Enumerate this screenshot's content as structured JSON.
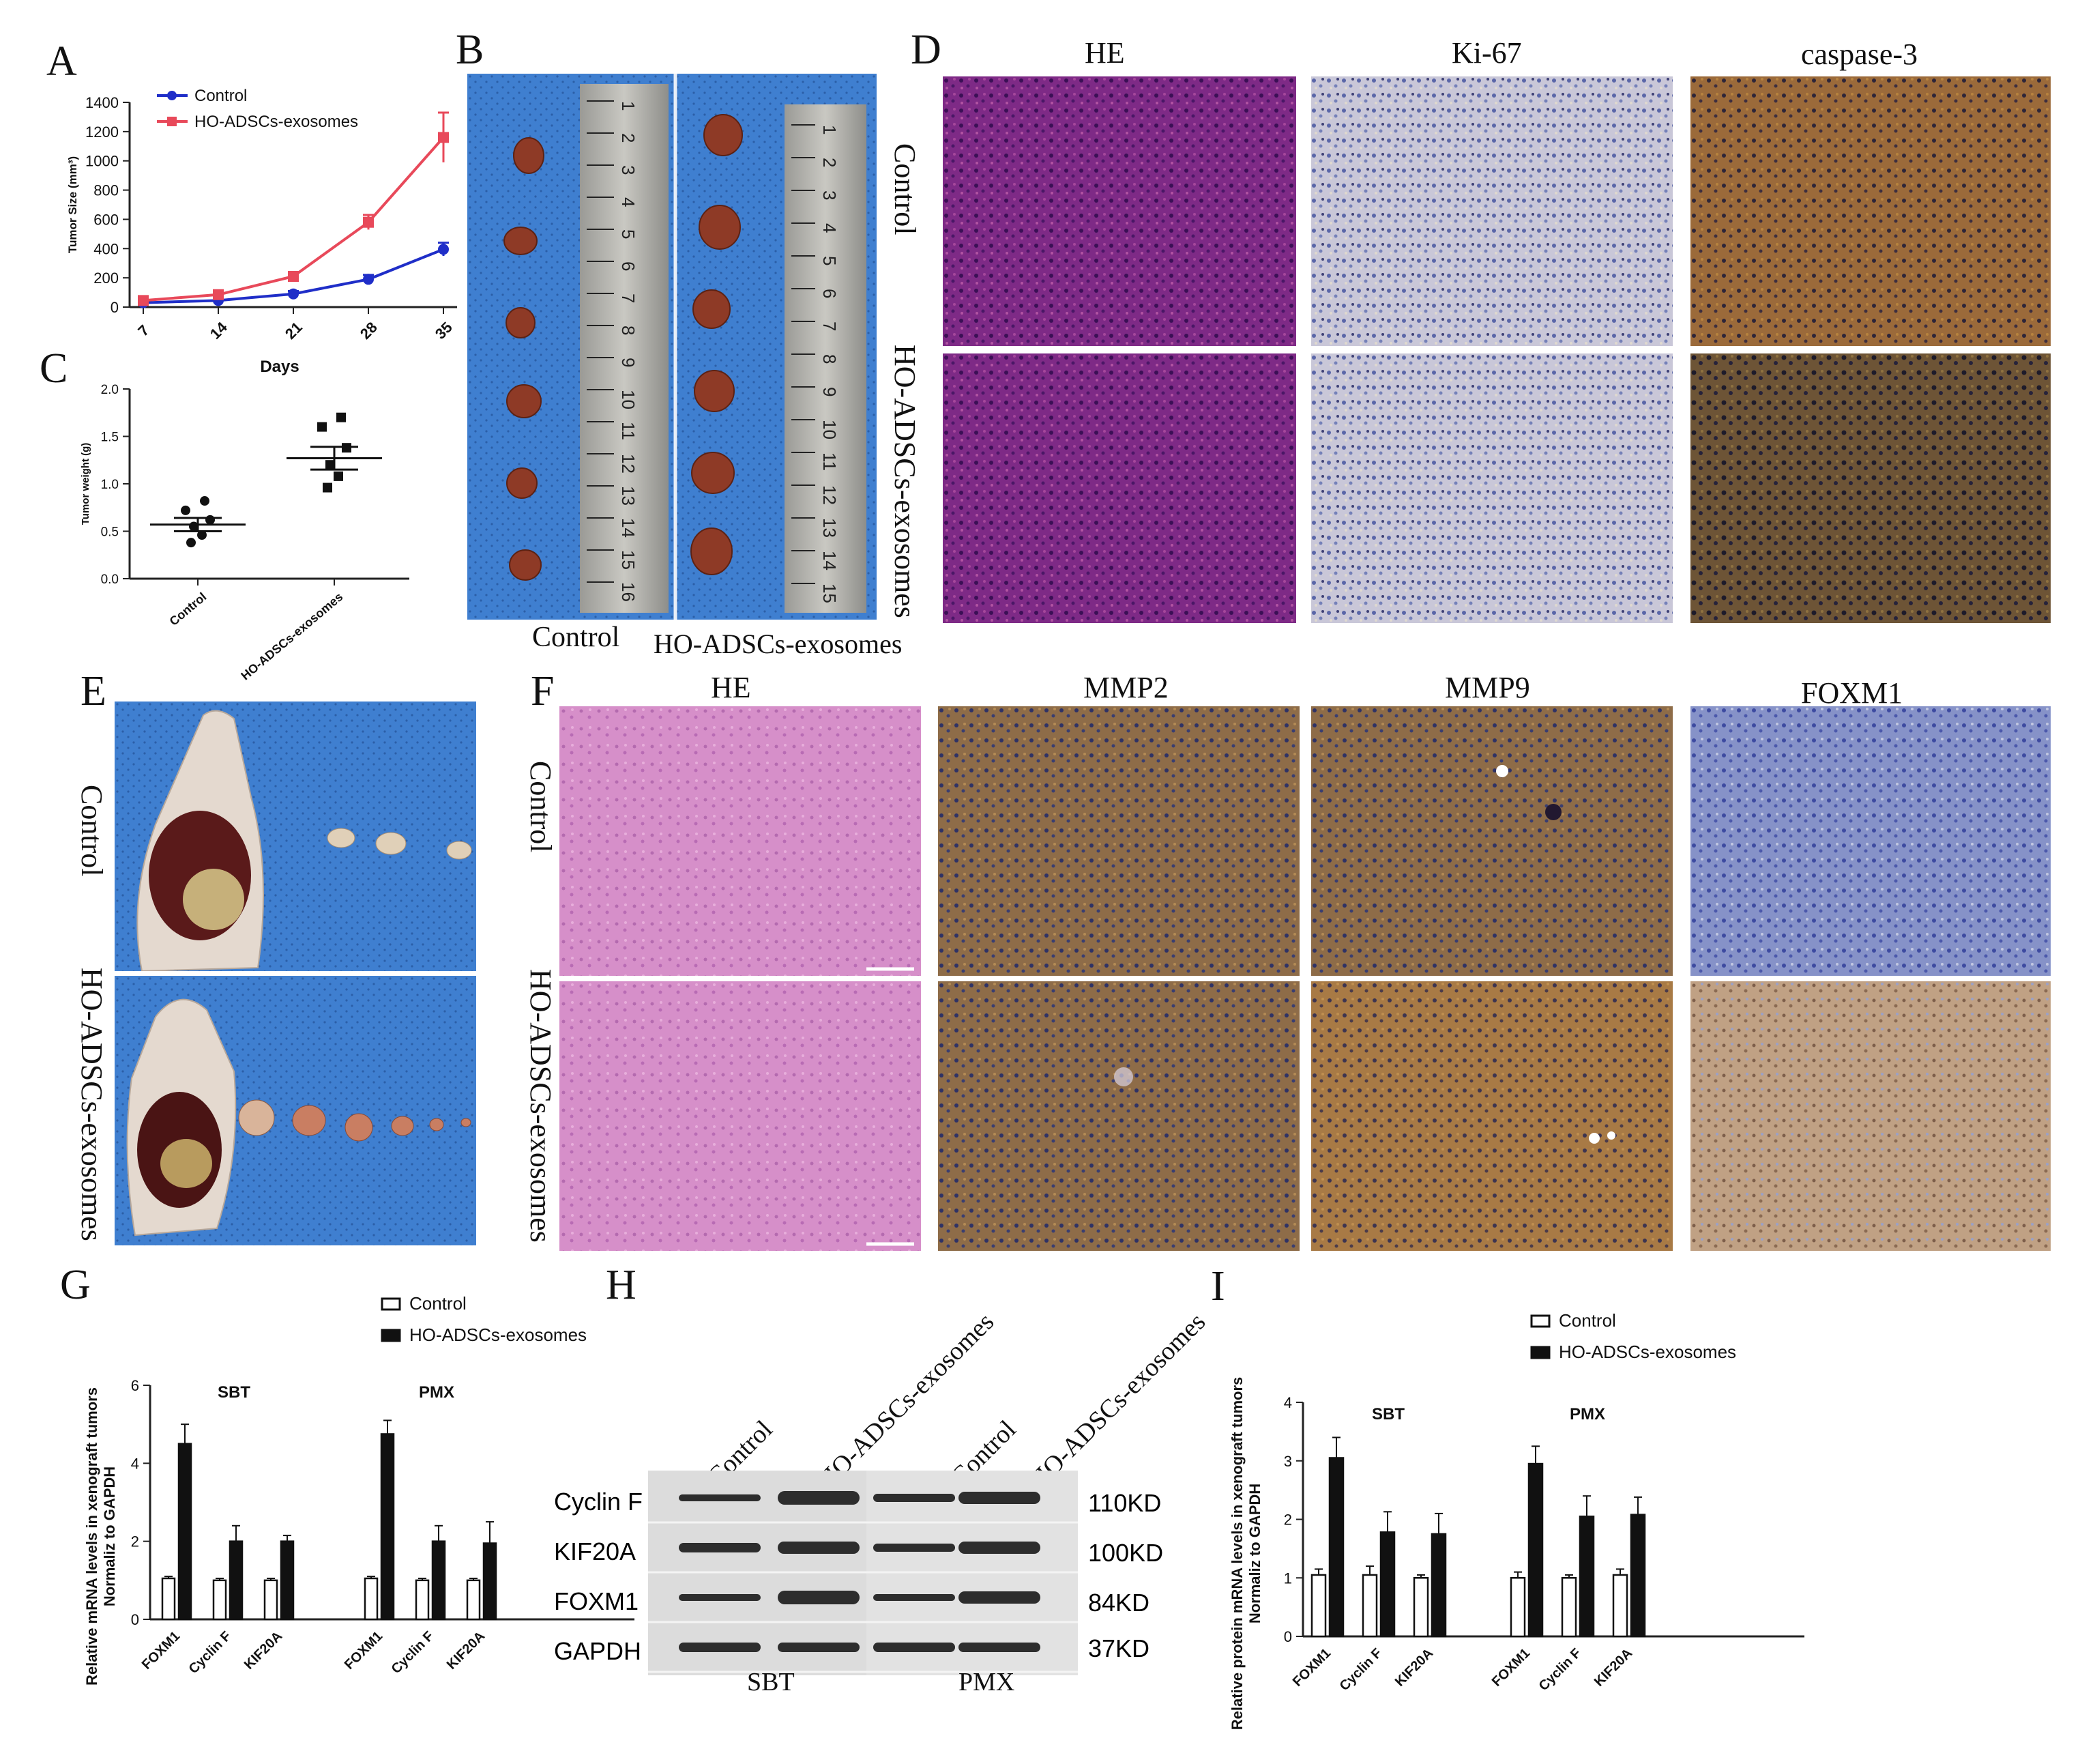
{
  "panels": {
    "A": "A",
    "B": "B",
    "C": "C",
    "D": "D",
    "E": "E",
    "F": "F",
    "G": "G",
    "H": "H",
    "I": "I"
  },
  "colors": {
    "control_line": "#1f2ec8",
    "exo_line": "#e8495a",
    "bar_control": "#ffffff",
    "bar_exo": "#111111",
    "blot_bg": "#dcdcdc",
    "blot_band": "#1a1a1a"
  },
  "panel_a": {
    "chart_data": {
      "type": "line",
      "xlabel": "Days",
      "ylabel": "Tumor Size (mm³)",
      "x": [
        7,
        14,
        21,
        28,
        35
      ],
      "ylim": [
        0,
        1400
      ],
      "yticks": [
        0,
        200,
        400,
        600,
        800,
        1000,
        1200,
        1400
      ],
      "series": [
        {
          "name": "Control",
          "values": [
            30,
            45,
            90,
            190,
            395
          ],
          "errors": [
            15,
            15,
            20,
            30,
            45
          ],
          "color": "#1f2ec8"
        },
        {
          "name": "HO-ADSCs-exosomes",
          "values": [
            45,
            85,
            210,
            580,
            1160
          ],
          "errors": [
            15,
            20,
            25,
            50,
            170
          ],
          "color": "#e8495a"
        }
      ]
    }
  },
  "panel_c": {
    "chart_data": {
      "type": "scatter",
      "ylabel": "Tumor weight (g)",
      "categories": [
        "Control",
        "HO-ADSCs-exosomes"
      ],
      "ylim": [
        0,
        2.0
      ],
      "yticks": [
        "0.0",
        "0.5",
        "1.0",
        "1.5",
        "2.0"
      ],
      "points": [
        [
          0.82,
          0.72,
          0.62,
          0.55,
          0.46,
          0.38
        ],
        [
          1.7,
          1.6,
          1.38,
          1.2,
          1.08,
          0.96
        ]
      ],
      "means": [
        0.57,
        1.27
      ],
      "sem": [
        0.07,
        0.12
      ]
    }
  },
  "panel_b": {
    "control": "Control",
    "exo": "HO-ADSCs-exosomes"
  },
  "panel_d": {
    "cols": [
      "HE",
      "Ki-67",
      "caspase-3"
    ],
    "rows": [
      "Control",
      "HO-ADSCs-exosomes"
    ]
  },
  "panel_e": {
    "rows": [
      "Control",
      "HO-ADSCs-exosomes"
    ]
  },
  "panel_f": {
    "cols": [
      "HE",
      "MMP2",
      "MMP9",
      "FOXM1"
    ],
    "rows": [
      "Control",
      "HO-ADSCs-exosomes"
    ]
  },
  "panel_g": {
    "chart_data": {
      "type": "bar",
      "ylabel": [
        "Relative mRNA levels in  xenograft tumors",
        "Normaliz to GAPDH"
      ],
      "groups": [
        "SBT",
        "PMX"
      ],
      "categories": [
        "FOXM1",
        "Cyclin F",
        "KIF20A"
      ],
      "ylim": [
        0,
        6
      ],
      "yticks": [
        0,
        2,
        4,
        6
      ],
      "series": [
        {
          "name": "Control",
          "values": [
            [
              1.05,
              1.0,
              1.0
            ],
            [
              1.05,
              1.0,
              1.0
            ]
          ],
          "errors": [
            [
              0.05,
              0.05,
              0.05
            ],
            [
              0.05,
              0.05,
              0.05
            ]
          ]
        },
        {
          "name": "HO-ADSCs-exosomes",
          "values": [
            [
              4.5,
              2.0,
              2.0
            ],
            [
              4.75,
              2.0,
              1.95
            ]
          ],
          "errors": [
            [
              0.5,
              0.4,
              0.15
            ],
            [
              0.35,
              0.4,
              0.55
            ]
          ]
        }
      ]
    }
  },
  "panel_h": {
    "cols": [
      "Control",
      "HO-ADSCs-exosomes",
      "Control",
      "HO-ADSCs-exosomes"
    ],
    "rows": [
      "Cyclin F",
      "KIF20A",
      "FOXM1",
      "GAPDH"
    ],
    "sizes": [
      "110KD",
      "100KD",
      "84KD",
      "37KD"
    ],
    "groups": [
      "SBT",
      "PMX"
    ]
  },
  "panel_i": {
    "chart_data": {
      "type": "bar",
      "ylabel": [
        "Relative protein mRNA levels in  xenograft tumors",
        "Normaliz to GAPDH"
      ],
      "groups": [
        "SBT",
        "PMX"
      ],
      "categories": [
        "FOXM1",
        "Cyclin F",
        "KIF20A"
      ],
      "ylim": [
        0,
        4
      ],
      "yticks": [
        0,
        1,
        2,
        3,
        4
      ],
      "series": [
        {
          "name": "Control",
          "values": [
            [
              1.05,
              1.05,
              1.0
            ],
            [
              1.0,
              1.0,
              1.05
            ]
          ],
          "errors": [
            [
              0.1,
              0.15,
              0.05
            ],
            [
              0.1,
              0.05,
              0.1
            ]
          ]
        },
        {
          "name": "HO-ADSCs-exosomes",
          "values": [
            [
              3.05,
              1.78,
              1.75
            ],
            [
              2.95,
              2.05,
              2.08
            ]
          ],
          "errors": [
            [
              0.35,
              0.35,
              0.35
            ],
            [
              0.3,
              0.35,
              0.3
            ]
          ]
        }
      ]
    }
  }
}
